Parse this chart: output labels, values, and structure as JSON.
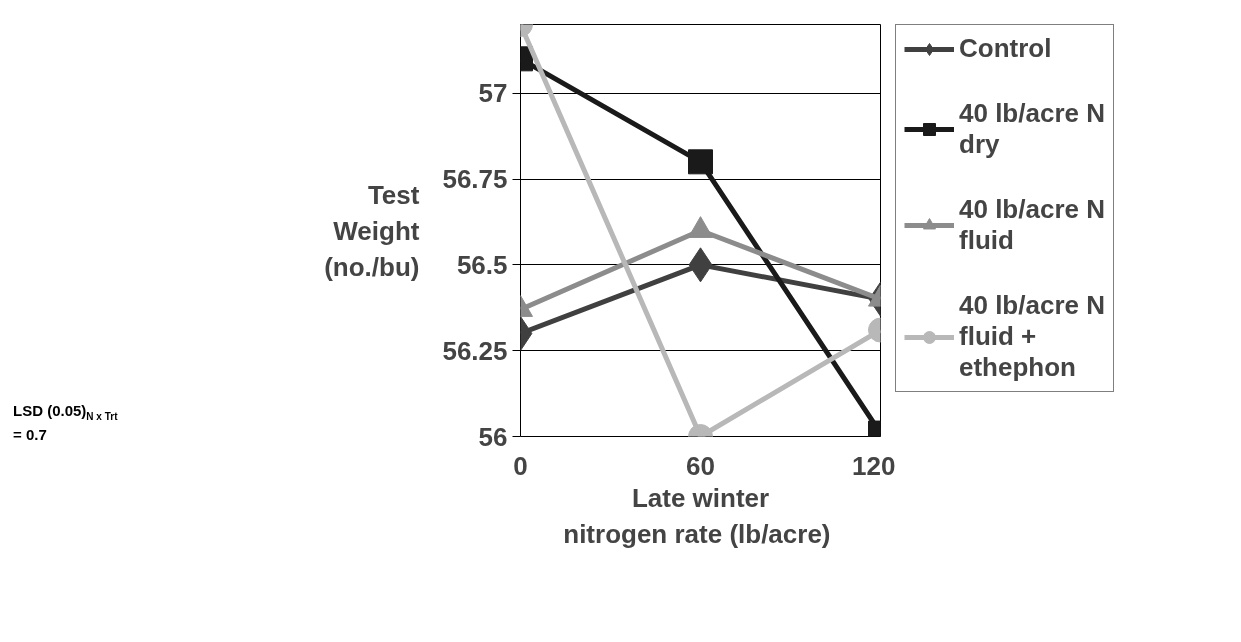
{
  "chart_data": {
    "type": "line",
    "xlabel": "Late winter\nnitrogen  rate (lb/acre)",
    "ylabel": "Test\nWeight\n(no./bu)",
    "x": [
      0,
      60,
      120
    ],
    "xlim": [
      0,
      120
    ],
    "xticks": [
      0,
      60,
      120
    ],
    "ylim": [
      56,
      57.2
    ],
    "yticks": [
      56,
      56.25,
      56.5,
      56.75,
      57
    ],
    "grid": "y",
    "legend": "right",
    "annotations": [
      "LSD (0.05)$_{N x Trt}$\n= 0.7"
    ],
    "series": [
      {
        "name": "Control",
        "color": "#404040",
        "marker": "diamond",
        "values": [
          56.3,
          56.5,
          56.4
        ]
      },
      {
        "name": "40 lb/acre N\ndry",
        "color": "#1a1a1a",
        "marker": "square",
        "values": [
          57.1,
          56.8,
          56.01
        ]
      },
      {
        "name": "40 lb/acre N\nfluid",
        "color": "#8c8c8c",
        "marker": "triangle",
        "values": [
          56.37,
          56.6,
          56.4
        ]
      },
      {
        "name": "40 lb/acre N\nfluid +\nethephon",
        "color": "#b8b8b8",
        "marker": "circle",
        "values": [
          57.2,
          56.0,
          56.31
        ]
      }
    ]
  }
}
